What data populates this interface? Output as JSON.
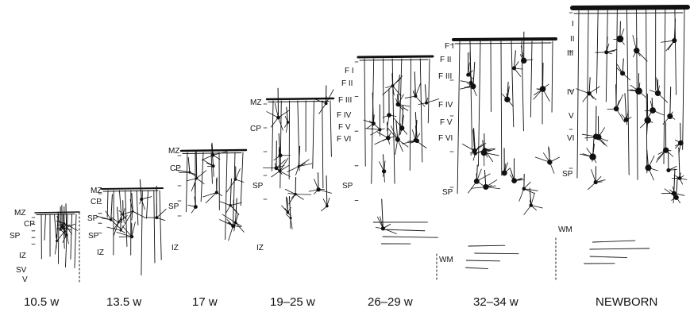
{
  "stages": [
    {
      "age": "10.5 w",
      "layers": [
        "MZ",
        "CP",
        "SP",
        "IZ",
        "SV",
        "V"
      ]
    },
    {
      "age": "13.5 w",
      "layers": [
        "MZ",
        "CP",
        "SP",
        "SP",
        "IZ"
      ]
    },
    {
      "age": "17 w",
      "layers": [
        "MZ",
        "CP",
        "SP",
        "IZ"
      ]
    },
    {
      "age": "19–25 w",
      "layers": [
        "MZ",
        "CP",
        "SP",
        "IZ"
      ]
    },
    {
      "age": "26–29 w",
      "layers": [
        "F I",
        "F II",
        "F III",
        "F IV",
        "F V",
        "F VI",
        "SP"
      ]
    },
    {
      "age": "32–34 w",
      "layers": [
        "F I",
        "F II",
        "F III",
        "F IV",
        "F V",
        "F VI",
        "SP",
        "WM"
      ]
    },
    {
      "age": "NEWBORN",
      "layers": [
        "I",
        "II",
        "III",
        "IV",
        "V",
        "VI",
        "SP",
        "WM"
      ]
    }
  ],
  "colors": {
    "ink": "#111111",
    "background": "#ffffff"
  }
}
